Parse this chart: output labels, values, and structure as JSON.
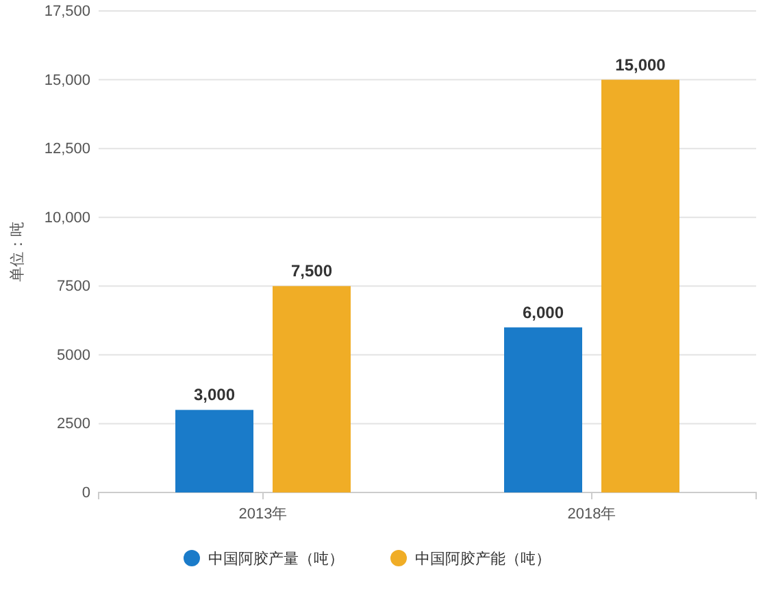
{
  "chart_data": {
    "type": "bar",
    "ylabel": "单位：吨",
    "categories": [
      "2013年",
      "2018年"
    ],
    "series": [
      {
        "name": "中国阿胶产量（吨）",
        "color": "#1a7bc9",
        "values": [
          3000,
          6000
        ],
        "value_labels": [
          "3,000",
          "6,000"
        ]
      },
      {
        "name": "中国阿胶产能（吨）",
        "color": "#f0ad26",
        "values": [
          7500,
          15000
        ],
        "value_labels": [
          "7,500",
          "15,000"
        ]
      }
    ],
    "ylim": [
      0,
      17500
    ],
    "yticks": [
      0,
      2500,
      5000,
      7500,
      {
        "value": 10000,
        "label": "10,000"
      },
      {
        "value": 12500,
        "label": "12,500"
      },
      {
        "value": 15000,
        "label": "15,000"
      },
      {
        "value": 17500,
        "label": "17,500"
      }
    ],
    "grid": "y",
    "legend": "bottom"
  }
}
